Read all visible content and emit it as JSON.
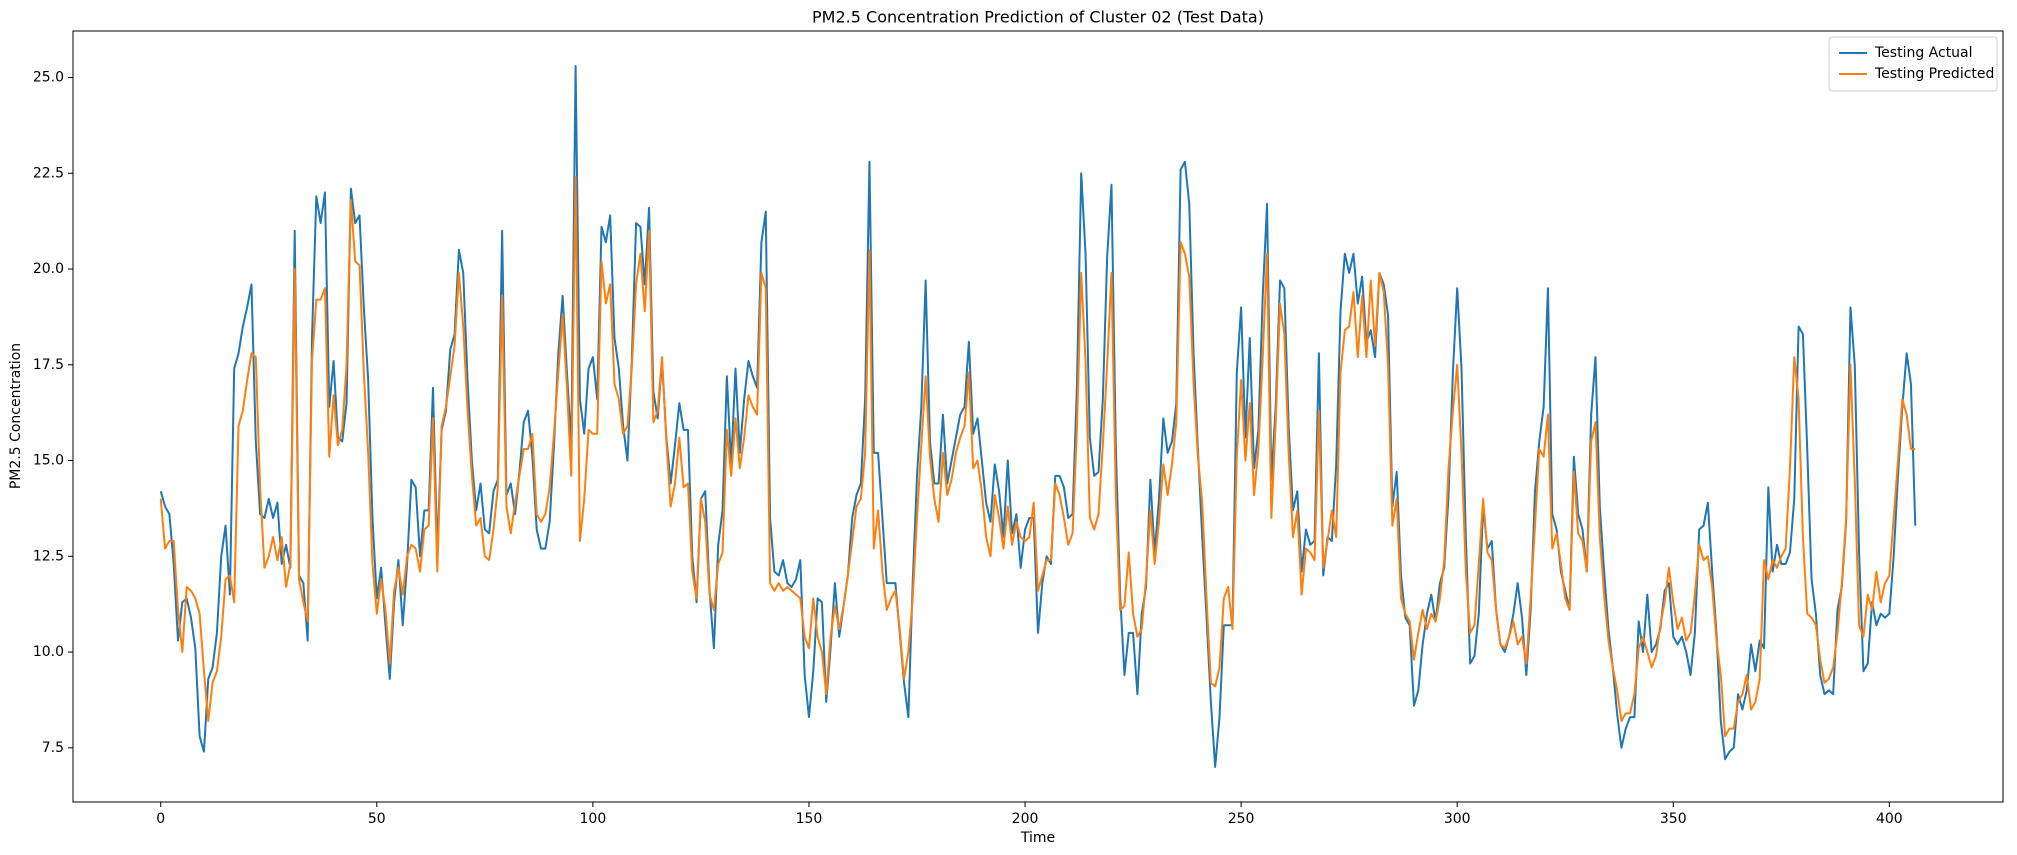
{
  "chart_data": {
    "type": "line",
    "title": "PM2.5 Concentration Prediction of Cluster 02 (Test Data)",
    "xlabel": "Time",
    "ylabel": "PM2.5 Concentration",
    "x": [
      0,
      1,
      2,
      3,
      4,
      5,
      6,
      7,
      8,
      9,
      10,
      11,
      12,
      13,
      14,
      15,
      16,
      17,
      18,
      19,
      20,
      21,
      22,
      23,
      24,
      25,
      26,
      27,
      28,
      29,
      30,
      31,
      32,
      33,
      34,
      35,
      36,
      37,
      38,
      39,
      40,
      41,
      42,
      43,
      44,
      45,
      46,
      47,
      48,
      49,
      50,
      51,
      52,
      53,
      54,
      55,
      56,
      57,
      58,
      59,
      60,
      61,
      62,
      63,
      64,
      65,
      66,
      67,
      68,
      69,
      70,
      71,
      72,
      73,
      74,
      75,
      76,
      77,
      78,
      79,
      80,
      81,
      82,
      83,
      84,
      85,
      86,
      87,
      88,
      89,
      90,
      91,
      92,
      93,
      94,
      95,
      96,
      97,
      98,
      99,
      100,
      101,
      102,
      103,
      104,
      105,
      106,
      107,
      108,
      109,
      110,
      111,
      112,
      113,
      114,
      115,
      116,
      117,
      118,
      119,
      120,
      121,
      122,
      123,
      124,
      125,
      126,
      127,
      128,
      129,
      130,
      131,
      132,
      133,
      134,
      135,
      136,
      137,
      138,
      139,
      140,
      141,
      142,
      143,
      144,
      145,
      146,
      147,
      148,
      149,
      150,
      151,
      152,
      153,
      154,
      155,
      156,
      157,
      158,
      159,
      160,
      161,
      162,
      163,
      164,
      165,
      166,
      167,
      168,
      169,
      170,
      171,
      172,
      173,
      174,
      175,
      176,
      177,
      178,
      179,
      180,
      181,
      182,
      183,
      184,
      185,
      186,
      187,
      188,
      189,
      190,
      191,
      192,
      193,
      194,
      195,
      196,
      197,
      198,
      199,
      200,
      201,
      202,
      203,
      204,
      205,
      206,
      207,
      208,
      209,
      210,
      211,
      212,
      213,
      214,
      215,
      216,
      217,
      218,
      219,
      220,
      221,
      222,
      223,
      224,
      225,
      226,
      227,
      228,
      229,
      230,
      231,
      232,
      233,
      234,
      235,
      236,
      237,
      238,
      239,
      240,
      241,
      242,
      243,
      244,
      245,
      246,
      247,
      248,
      249,
      250,
      251,
      252,
      253,
      254,
      255,
      256,
      257,
      258,
      259,
      260,
      261,
      262,
      263,
      264,
      265,
      266,
      267,
      268,
      269,
      270,
      271,
      272,
      273,
      274,
      275,
      276,
      277,
      278,
      279,
      280,
      281,
      282,
      283,
      284,
      285,
      286,
      287,
      288,
      289,
      290,
      291,
      292,
      293,
      294,
      295,
      296,
      297,
      298,
      299,
      300,
      301,
      302,
      303,
      304,
      305,
      306,
      307,
      308,
      309,
      310,
      311,
      312,
      313,
      314,
      315,
      316,
      317,
      318,
      319,
      320,
      321,
      322,
      323,
      324,
      325,
      326,
      327,
      328,
      329,
      330,
      331,
      332,
      333,
      334,
      335,
      336,
      337,
      338,
      339,
      340,
      341,
      342,
      343,
      344,
      345,
      346,
      347,
      348,
      349,
      350,
      351,
      352,
      353,
      354,
      355,
      356,
      357,
      358,
      359,
      360,
      361,
      362,
      363,
      364,
      365,
      366,
      367,
      368,
      369,
      370,
      371,
      372,
      373,
      374,
      375,
      376,
      377,
      378,
      379,
      380,
      381,
      382,
      383,
      384,
      385,
      386,
      387,
      388,
      389,
      390,
      391,
      392,
      393,
      394,
      395,
      396,
      397,
      398,
      399,
      400,
      401,
      402,
      403,
      404,
      405,
      406
    ],
    "series": [
      {
        "name": "Testing Actual",
        "color": "#1f77b4",
        "values": [
          14.2,
          13.8,
          13.6,
          12.3,
          10.3,
          11.3,
          11.4,
          10.9,
          10.1,
          7.8,
          7.4,
          9.3,
          9.6,
          10.5,
          12.5,
          13.3,
          11.5,
          17.4,
          17.8,
          18.5,
          19.0,
          19.6,
          15.5,
          13.6,
          13.5,
          14.0,
          13.5,
          13.9,
          12.3,
          12.8,
          12.2,
          21.0,
          12.0,
          11.8,
          10.3,
          18.2,
          21.9,
          21.2,
          22.0,
          16.4,
          17.6,
          15.6,
          15.5,
          16.5,
          22.1,
          21.2,
          21.4,
          19.0,
          17.1,
          13.5,
          11.4,
          12.2,
          10.7,
          9.3,
          11.3,
          12.4,
          10.7,
          12.3,
          14.5,
          14.3,
          12.5,
          13.7,
          13.7,
          16.9,
          12.6,
          15.8,
          16.3,
          17.9,
          18.3,
          20.5,
          19.9,
          17.1,
          15.0,
          13.7,
          14.4,
          13.2,
          13.1,
          14.2,
          14.5,
          21.0,
          14.1,
          14.4,
          13.6,
          14.7,
          16.0,
          16.3,
          15.1,
          13.2,
          12.7,
          12.7,
          13.4,
          15.4,
          17.8,
          19.3,
          17.3,
          15.4,
          25.3,
          16.6,
          15.7,
          17.4,
          17.7,
          16.6,
          21.1,
          20.7,
          21.4,
          18.2,
          17.4,
          15.9,
          15.0,
          17.6,
          21.2,
          21.1,
          19.6,
          21.6,
          16.8,
          16.1,
          17.6,
          15.6,
          14.4,
          15.4,
          16.5,
          15.8,
          15.8,
          12.5,
          11.3,
          14.0,
          14.2,
          11.6,
          10.1,
          12.8,
          13.7,
          17.2,
          14.9,
          17.4,
          15.2,
          16.6,
          17.6,
          17.2,
          16.9,
          20.7,
          21.5,
          13.5,
          12.1,
          12.0,
          12.4,
          11.8,
          11.7,
          11.9,
          12.4,
          9.4,
          8.3,
          9.5,
          11.4,
          11.3,
          8.7,
          10.1,
          11.8,
          10.4,
          11.2,
          12.0,
          13.5,
          14.1,
          14.4,
          16.6,
          22.8,
          15.2,
          15.2,
          13.5,
          11.8,
          11.8,
          11.8,
          10.5,
          9.2,
          8.3,
          11.8,
          14.6,
          16.4,
          19.7,
          15.5,
          14.4,
          14.4,
          16.2,
          14.4,
          15.0,
          15.6,
          16.2,
          16.4,
          18.1,
          15.7,
          16.1,
          15.0,
          13.9,
          13.4,
          14.9,
          14.2,
          13.0,
          15.0,
          13.1,
          13.6,
          12.2,
          13.2,
          13.5,
          13.5,
          10.5,
          11.8,
          12.5,
          12.3,
          14.6,
          14.6,
          14.3,
          13.5,
          13.6,
          16.9,
          22.5,
          20.4,
          15.6,
          14.6,
          14.7,
          16.6,
          20.3,
          22.2,
          15.4,
          11.5,
          9.4,
          10.5,
          10.5,
          8.9,
          11.0,
          11.7,
          14.5,
          12.6,
          14.0,
          16.1,
          15.2,
          15.5,
          16.5,
          22.6,
          22.8,
          21.7,
          17.8,
          15.3,
          13.0,
          10.9,
          8.7,
          7.0,
          8.3,
          10.7,
          10.7,
          10.7,
          17.3,
          19.0,
          15.6,
          18.2,
          14.8,
          15.8,
          19.3,
          21.7,
          14.5,
          16.4,
          19.7,
          19.5,
          15.9,
          13.7,
          14.2,
          12.1,
          13.2,
          12.8,
          12.9,
          17.8,
          12.0,
          13.0,
          12.9,
          14.9,
          18.9,
          20.4,
          19.9,
          20.4,
          19.1,
          19.8,
          18.1,
          18.4,
          17.7,
          19.9,
          19.6,
          18.8,
          13.8,
          14.7,
          12.0,
          10.9,
          10.7,
          8.6,
          9.0,
          10.2,
          11.0,
          11.5,
          10.8,
          11.8,
          12.2,
          14.1,
          17.3,
          19.5,
          17.4,
          13.0,
          9.7,
          9.9,
          11.0,
          13.8,
          12.7,
          12.9,
          11.1,
          10.2,
          10.0,
          10.4,
          11.0,
          11.8,
          10.9,
          9.4,
          11.1,
          14.2,
          15.5,
          16.4,
          19.5,
          13.6,
          13.2,
          12.1,
          11.6,
          11.1,
          15.1,
          13.6,
          13.2,
          12.1,
          16.2,
          17.7,
          13.8,
          12.1,
          10.6,
          9.6,
          8.4,
          7.5,
          8.0,
          8.3,
          8.3,
          10.8,
          10.0,
          11.5,
          10.0,
          10.2,
          10.6,
          11.6,
          11.8,
          10.4,
          10.2,
          10.4,
          10.0,
          9.4,
          10.5,
          13.2,
          13.3,
          13.9,
          12.1,
          10.5,
          8.2,
          7.2,
          7.4,
          7.5,
          8.9,
          8.5,
          9.0,
          10.2,
          9.5,
          10.3,
          10.1,
          14.3,
          12.1,
          12.8,
          12.3,
          12.3,
          12.6,
          14.0,
          18.5,
          18.3,
          15.3,
          11.9,
          11.0,
          9.4,
          8.9,
          9.0,
          8.9,
          11.1,
          11.7,
          13.4,
          19.0,
          17.5,
          12.6,
          9.5,
          9.7,
          11.3,
          10.7,
          11.0,
          10.9,
          11.0,
          12.5,
          14.6,
          16.4,
          17.8,
          17.0,
          13.3
        ]
      },
      {
        "name": "Testing Predicted",
        "color": "#ff7f0e",
        "values": [
          14.0,
          12.7,
          12.9,
          12.9,
          11.1,
          10.0,
          11.7,
          11.6,
          11.4,
          11.0,
          9.5,
          8.2,
          9.2,
          9.5,
          10.4,
          11.9,
          12.0,
          11.3,
          15.9,
          16.3,
          17.1,
          17.8,
          17.7,
          14.3,
          12.2,
          12.5,
          13.0,
          12.4,
          13.0,
          11.7,
          12.3,
          20.0,
          11.9,
          11.3,
          10.8,
          17.6,
          19.2,
          19.2,
          19.5,
          15.1,
          16.7,
          15.4,
          15.8,
          17.5,
          21.8,
          20.2,
          20.1,
          17.3,
          15.2,
          12.3,
          11.0,
          11.9,
          11.1,
          9.7,
          11.6,
          12.2,
          11.5,
          12.5,
          12.8,
          12.7,
          12.1,
          13.2,
          13.3,
          16.1,
          12.1,
          15.9,
          16.4,
          17.2,
          18.0,
          19.9,
          18.5,
          16.3,
          14.6,
          13.3,
          13.5,
          12.5,
          12.4,
          13.2,
          14.3,
          19.3,
          13.8,
          13.1,
          13.9,
          14.6,
          15.3,
          15.3,
          15.7,
          13.6,
          13.4,
          13.6,
          14.3,
          15.7,
          17.3,
          18.8,
          16.9,
          14.6,
          22.4,
          12.9,
          14.0,
          15.8,
          15.7,
          15.7,
          20.2,
          19.1,
          19.6,
          17.0,
          16.6,
          15.7,
          15.9,
          17.4,
          19.6,
          20.4,
          18.9,
          21.0,
          16.0,
          16.3,
          17.7,
          15.5,
          13.8,
          14.4,
          15.6,
          14.3,
          14.4,
          12.1,
          11.4,
          14.0,
          13.4,
          11.5,
          11.1,
          12.3,
          12.6,
          15.8,
          14.6,
          16.1,
          14.8,
          15.6,
          16.7,
          16.4,
          16.2,
          19.9,
          19.5,
          11.8,
          11.6,
          11.8,
          11.6,
          11.7,
          11.6,
          11.5,
          11.4,
          10.4,
          10.1,
          11.4,
          10.4,
          10.0,
          8.9,
          10.4,
          11.2,
          10.6,
          11.2,
          12.0,
          12.9,
          13.8,
          14.0,
          15.2,
          20.5,
          12.7,
          13.7,
          12.1,
          11.1,
          11.4,
          11.6,
          10.6,
          9.3,
          10.0,
          11.4,
          13.5,
          15.4,
          17.2,
          15.1,
          14.0,
          13.4,
          15.2,
          14.1,
          14.5,
          15.2,
          15.6,
          15.9,
          17.3,
          14.8,
          15.0,
          14.2,
          13.0,
          12.5,
          14.1,
          13.5,
          12.7,
          13.8,
          12.8,
          13.4,
          13.0,
          12.9,
          13.0,
          13.9,
          11.6,
          12.0,
          12.4,
          12.4,
          14.4,
          14.1,
          13.5,
          12.8,
          13.1,
          15.8,
          19.9,
          17.6,
          13.5,
          13.2,
          13.6,
          15.4,
          17.5,
          19.9,
          14.1,
          11.1,
          11.2,
          12.6,
          11.0,
          10.4,
          10.6,
          11.9,
          13.7,
          12.3,
          13.4,
          14.9,
          14.1,
          14.9,
          16.0,
          20.7,
          20.4,
          19.8,
          17.0,
          15.1,
          13.9,
          11.4,
          9.2,
          9.1,
          9.6,
          11.4,
          11.7,
          10.6,
          15.1,
          17.1,
          15.0,
          16.5,
          14.1,
          15.3,
          17.7,
          20.4,
          13.5,
          16.0,
          19.1,
          18.3,
          15.2,
          13.0,
          13.7,
          11.5,
          12.7,
          12.6,
          12.4,
          16.3,
          12.2,
          12.9,
          13.7,
          13.0,
          17.3,
          18.4,
          18.5,
          19.4,
          17.7,
          19.3,
          17.7,
          19.7,
          18.0,
          19.9,
          19.4,
          17.5,
          13.3,
          14.0,
          11.4,
          11.0,
          10.8,
          9.8,
          10.5,
          11.1,
          10.6,
          11.0,
          10.8,
          11.4,
          12.4,
          14.8,
          16.3,
          17.5,
          15.2,
          12.1,
          10.5,
          10.7,
          12.3,
          14.0,
          12.6,
          12.4,
          11.1,
          10.2,
          10.1,
          10.4,
          10.8,
          10.2,
          10.4,
          9.7,
          11.4,
          13.3,
          15.3,
          15.1,
          16.2,
          12.7,
          13.1,
          12.3,
          11.4,
          11.1,
          14.7,
          13.1,
          12.9,
          12.1,
          15.5,
          16.0,
          13.0,
          11.5,
          10.3,
          9.6,
          9.0,
          8.2,
          8.4,
          8.4,
          8.9,
          10.1,
          10.4,
          10.0,
          9.6,
          9.9,
          10.7,
          11.3,
          12.2,
          11.3,
          10.6,
          10.9,
          10.3,
          10.5,
          11.5,
          12.8,
          12.4,
          12.5,
          11.7,
          10.3,
          9.4,
          7.8,
          8.0,
          8.0,
          8.7,
          8.9,
          9.4,
          8.5,
          8.7,
          9.3,
          12.4,
          11.9,
          12.4,
          12.2,
          12.5,
          12.7,
          14.8,
          17.7,
          16.6,
          13.0,
          11.0,
          10.9,
          10.7,
          9.8,
          9.2,
          9.3,
          9.6,
          10.5,
          11.8,
          13.5,
          17.5,
          14.5,
          10.7,
          10.4,
          11.5,
          11.1,
          12.1,
          11.3,
          11.8,
          12.0,
          13.5,
          15.0,
          16.6,
          16.2,
          15.3,
          15.3
        ]
      }
    ],
    "xlim": [
      -20.3,
      426.3
    ],
    "xticks": [
      0,
      50,
      100,
      150,
      200,
      250,
      300,
      350,
      400
    ],
    "ylim": [
      6.085,
      26.215
    ],
    "yticks": [
      7.5,
      {
        "value": 10,
        "label": "10.0"
      },
      12.5,
      {
        "value": 15,
        "label": "15.0"
      },
      17.5,
      {
        "value": 20,
        "label": "20.0"
      },
      22.5,
      {
        "value": 25,
        "label": "25.0"
      }
    ],
    "grid": false,
    "legend": "upper right"
  }
}
